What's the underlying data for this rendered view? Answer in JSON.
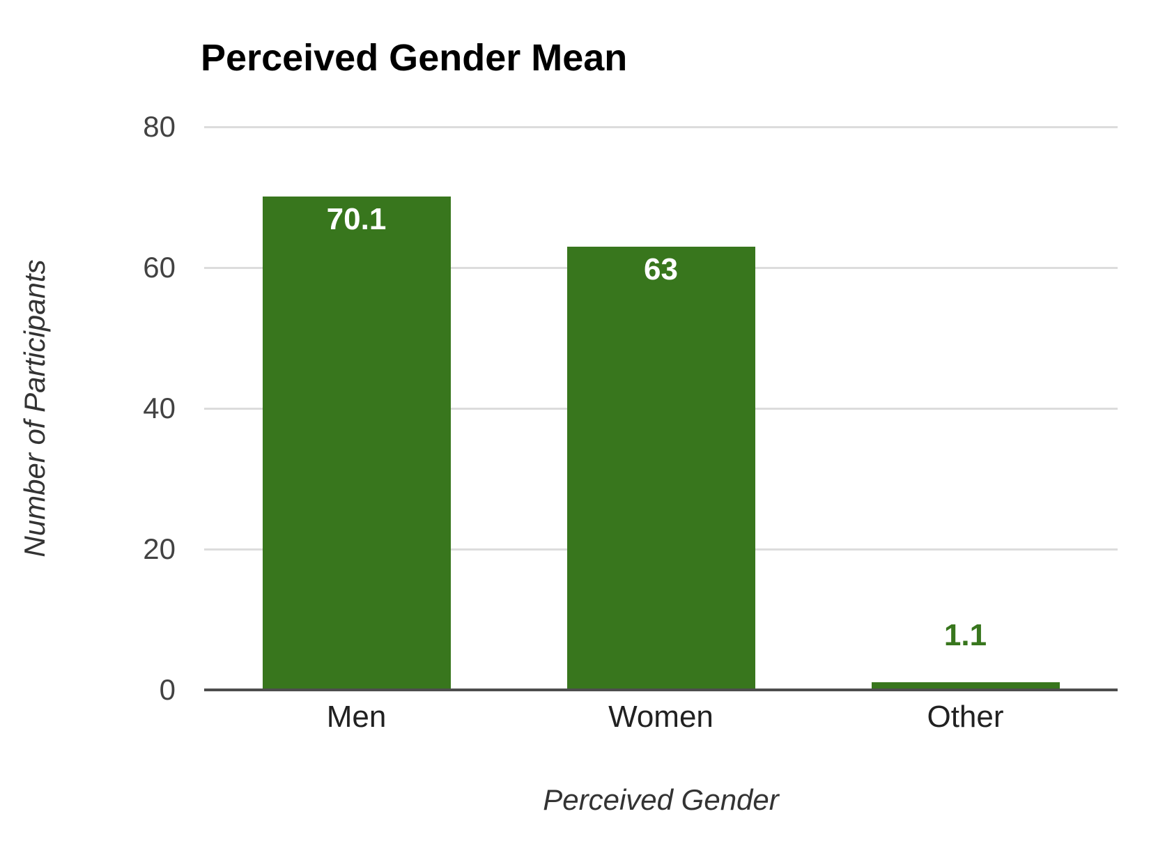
{
  "chart_data": {
    "type": "bar",
    "title": "Perceived Gender Mean",
    "xlabel": "Perceived Gender",
    "ylabel": "Number of Participants",
    "categories": [
      "Men",
      "Women",
      "Other"
    ],
    "values": [
      70.1,
      63,
      1.1
    ],
    "bars": [
      {
        "category": "Men",
        "value": 70.1,
        "label": "70.1",
        "label_position": "inside",
        "label_color": "#ffffff"
      },
      {
        "category": "Women",
        "value": 63,
        "label": "63",
        "label_position": "inside",
        "label_color": "#ffffff"
      },
      {
        "category": "Other",
        "value": 1.1,
        "label": "1.1",
        "label_position": "above",
        "label_color": "#38761d"
      }
    ],
    "ylim": [
      0,
      80
    ],
    "yticks": [
      0,
      20,
      40,
      60,
      80
    ],
    "grid": true,
    "legend": "none",
    "colors": {
      "bar": "#38761d",
      "gridline": "#dcdcdc",
      "axis_line": "#4d4d4d",
      "title": "#000000",
      "tick_label": "#424242",
      "category_label": "#212121",
      "axis_title": "#333333",
      "background": "#ffffff"
    }
  }
}
